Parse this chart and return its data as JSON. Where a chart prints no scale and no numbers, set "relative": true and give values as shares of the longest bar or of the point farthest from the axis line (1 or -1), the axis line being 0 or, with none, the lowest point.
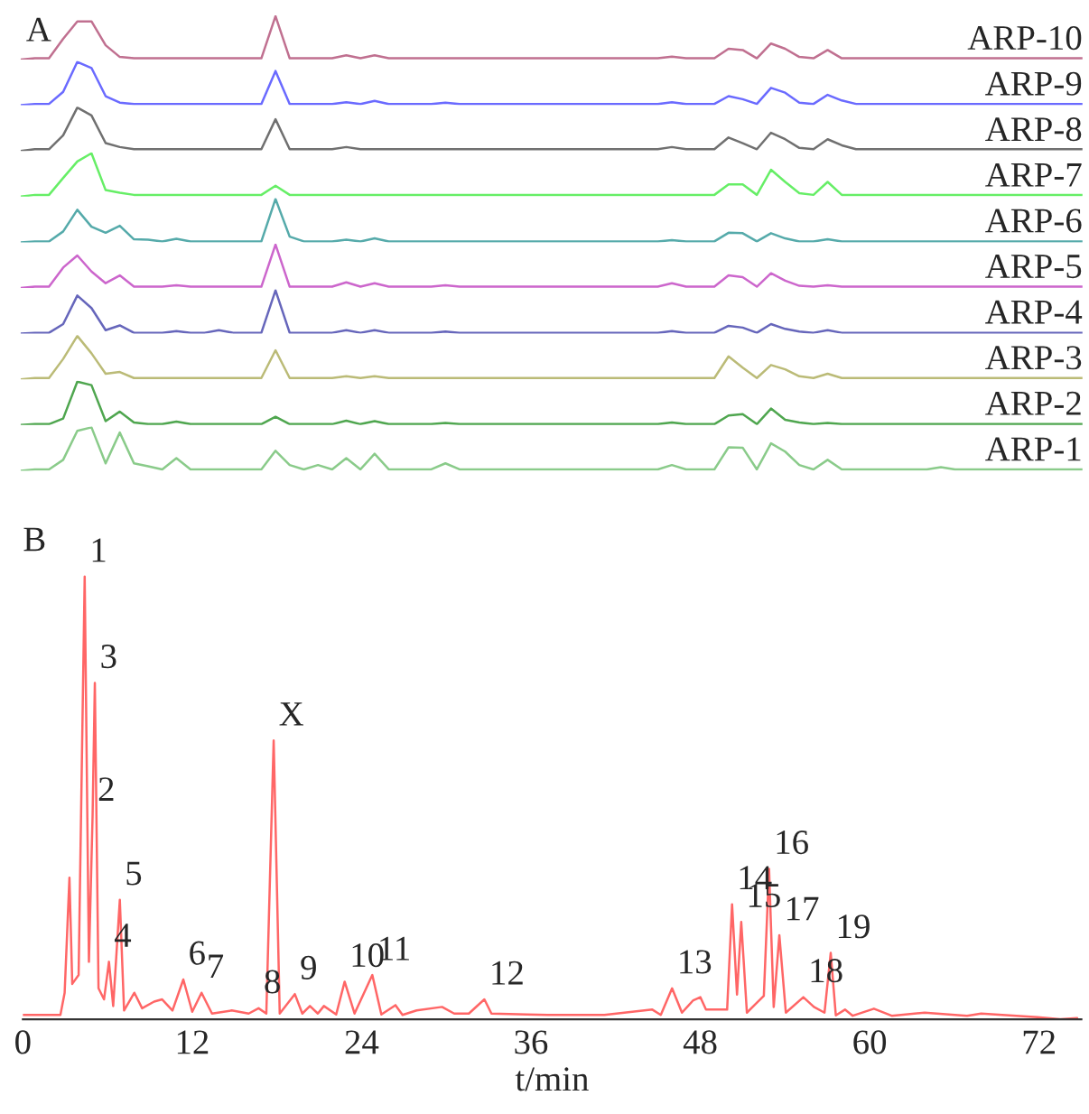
{
  "chart_data": [
    {
      "type": "line",
      "title": "A",
      "relative": true,
      "tick_labels": false,
      "categories": [
        null,
        null,
        null,
        null,
        null,
        null,
        null,
        null,
        null,
        null,
        null,
        null,
        null,
        null,
        null,
        null,
        null,
        null,
        null,
        null,
        null,
        null,
        null,
        null,
        null,
        null,
        null,
        null,
        null,
        null,
        null,
        null,
        null,
        null,
        null,
        null,
        null,
        null,
        null,
        null,
        null,
        null,
        null,
        null,
        null,
        null,
        null,
        null,
        null,
        null,
        null,
        null,
        null,
        null,
        null,
        null,
        null,
        null,
        null,
        null,
        null,
        null,
        null,
        null,
        null,
        null,
        null,
        null,
        null,
        null,
        null,
        null,
        null,
        null,
        null,
        null
      ],
      "series": [
        {
          "name": "ARP-10",
          "color": "#c07090",
          "values": [
            0,
            0.03,
            0.03,
            0.48,
            0.88,
            0.88,
            0.33,
            0.06,
            0.03,
            0.03,
            0.03,
            0.03,
            0.03,
            0.03,
            0.03,
            0.03,
            0.03,
            0.03,
            1,
            0.03,
            0.03,
            0.03,
            0.03,
            0.1,
            0.03,
            0.1,
            0.03,
            0.03,
            0.03,
            0.03,
            0.03,
            0.03,
            0.03,
            0.03,
            0.03,
            0.03,
            0.03,
            0.03,
            0.03,
            0.03,
            0.03,
            0.03,
            0.03,
            0.03,
            0.03,
            0.03,
            0.07,
            0.03,
            0.03,
            0.03,
            0.25,
            0.22,
            0.03,
            0.37,
            0.25,
            0.06,
            0.03,
            0.22,
            0.03,
            0.03,
            0.03,
            0.03,
            0.03,
            0.03,
            0.03,
            0.03,
            0.03,
            0.03,
            0.03,
            0.03,
            0.03,
            0.03,
            0.03,
            0.03,
            0.03,
            0.03
          ]
        }
      ]
    },
    {
      "type": "line",
      "relative": true,
      "tick_labels": false,
      "categories": [
        null,
        null,
        null,
        null,
        null,
        null,
        null,
        null,
        null,
        null,
        null,
        null,
        null,
        null,
        null,
        null,
        null,
        null,
        null,
        null,
        null,
        null,
        null,
        null,
        null,
        null,
        null,
        null,
        null,
        null,
        null,
        null,
        null,
        null,
        null,
        null,
        null,
        null,
        null,
        null,
        null,
        null,
        null,
        null,
        null,
        null,
        null,
        null,
        null,
        null,
        null,
        null,
        null,
        null,
        null,
        null,
        null,
        null,
        null,
        null,
        null,
        null,
        null,
        null,
        null,
        null,
        null,
        null,
        null,
        null,
        null,
        null,
        null,
        null,
        null,
        null
      ],
      "series": [
        {
          "name": "ARP-9",
          "color": "#6a6aff",
          "values": [
            0,
            0.03,
            0.03,
            0.31,
            1,
            0.86,
            0.21,
            0.06,
            0.03,
            0.03,
            0.03,
            0.03,
            0.03,
            0.03,
            0.03,
            0.03,
            0.03,
            0.03,
            0.79,
            0.03,
            0.03,
            0.03,
            0.03,
            0.07,
            0.03,
            0.1,
            0.03,
            0.03,
            0.03,
            0.03,
            0.06,
            0.03,
            0.03,
            0.03,
            0.03,
            0.03,
            0.03,
            0.03,
            0.03,
            0.03,
            0.03,
            0.03,
            0.03,
            0.03,
            0.03,
            0.03,
            0.07,
            0.03,
            0.03,
            0.03,
            0.21,
            0.14,
            0.03,
            0.4,
            0.29,
            0.06,
            0.03,
            0.24,
            0.11,
            0.03,
            0.03,
            0.03,
            0.03,
            0.03,
            0.03,
            0.03,
            0.03,
            0.03,
            0.03,
            0.03,
            0.03,
            0.03,
            0.03,
            0.03,
            0.03,
            0.03
          ]
        }
      ]
    },
    {
      "type": "line",
      "relative": true,
      "tick_labels": false,
      "categories": [
        null,
        null,
        null,
        null,
        null,
        null,
        null,
        null,
        null,
        null,
        null,
        null,
        null,
        null,
        null,
        null,
        null,
        null,
        null,
        null,
        null,
        null,
        null,
        null,
        null,
        null,
        null,
        null,
        null,
        null,
        null,
        null,
        null,
        null,
        null,
        null,
        null,
        null,
        null,
        null,
        null,
        null,
        null,
        null,
        null,
        null,
        null,
        null,
        null,
        null,
        null,
        null,
        null,
        null,
        null,
        null,
        null,
        null,
        null,
        null,
        null,
        null,
        null,
        null,
        null,
        null,
        null,
        null,
        null,
        null,
        null,
        null,
        null,
        null,
        null,
        null
      ],
      "series": [
        {
          "name": "ARP-8",
          "color": "#707070",
          "values": [
            0,
            0.04,
            0.04,
            0.36,
            1,
            0.82,
            0.18,
            0.09,
            0.04,
            0.04,
            0.04,
            0.04,
            0.04,
            0.04,
            0.04,
            0.04,
            0.04,
            0.04,
            0.73,
            0.04,
            0.04,
            0.04,
            0.04,
            0.09,
            0.04,
            0.04,
            0.04,
            0.04,
            0.04,
            0.04,
            0.04,
            0.04,
            0.04,
            0.04,
            0.04,
            0.04,
            0.04,
            0.04,
            0.04,
            0.04,
            0.04,
            0.04,
            0.04,
            0.04,
            0.04,
            0.04,
            0.09,
            0.04,
            0.04,
            0.04,
            0.31,
            0.18,
            0.04,
            0.42,
            0.27,
            0.07,
            0.04,
            0.27,
            0.13,
            0.04,
            0.04,
            0.04,
            0.04,
            0.04,
            0.04,
            0.04,
            0.04,
            0.04,
            0.04,
            0.04,
            0.04,
            0.04,
            0.04,
            0.04,
            0.04,
            0.04
          ]
        }
      ]
    },
    {
      "type": "line",
      "relative": true,
      "tick_labels": false,
      "categories": [
        null,
        null,
        null,
        null,
        null,
        null,
        null,
        null,
        null,
        null,
        null,
        null,
        null,
        null,
        null,
        null,
        null,
        null,
        null,
        null,
        null,
        null,
        null,
        null,
        null,
        null,
        null,
        null,
        null,
        null,
        null,
        null,
        null,
        null,
        null,
        null,
        null,
        null,
        null,
        null,
        null,
        null,
        null,
        null,
        null,
        null,
        null,
        null,
        null,
        null,
        null,
        null,
        null,
        null,
        null,
        null,
        null,
        null,
        null,
        null,
        null,
        null,
        null,
        null,
        null,
        null,
        null,
        null,
        null,
        null,
        null,
        null,
        null,
        null,
        null,
        null
      ],
      "series": [
        {
          "name": "ARP-7",
          "color": "#66ee66",
          "values": [
            0,
            0.04,
            0.04,
            0.43,
            0.81,
            1,
            0.15,
            0.09,
            0.04,
            0.04,
            0.04,
            0.04,
            0.04,
            0.04,
            0.04,
            0.04,
            0.04,
            0.04,
            0.25,
            0.04,
            0.04,
            0.04,
            0.04,
            0.04,
            0.04,
            0.04,
            0.04,
            0.04,
            0.04,
            0.04,
            0.04,
            0.04,
            0.04,
            0.04,
            0.04,
            0.04,
            0.04,
            0.04,
            0.04,
            0.04,
            0.04,
            0.04,
            0.04,
            0.04,
            0.04,
            0.04,
            0.04,
            0.04,
            0.04,
            0.04,
            0.28,
            0.28,
            0.04,
            0.62,
            0.34,
            0.08,
            0.04,
            0.34,
            0.04,
            0.04,
            0.04,
            0.04,
            0.04,
            0.04,
            0.04,
            0.04,
            0.04,
            0.04,
            0.04,
            0.04,
            0.04,
            0.04,
            0.04,
            0.04,
            0.04,
            0.04
          ]
        }
      ]
    },
    {
      "type": "line",
      "relative": true,
      "tick_labels": false,
      "categories": [
        null,
        null,
        null,
        null,
        null,
        null,
        null,
        null,
        null,
        null,
        null,
        null,
        null,
        null,
        null,
        null,
        null,
        null,
        null,
        null,
        null,
        null,
        null,
        null,
        null,
        null,
        null,
        null,
        null,
        null,
        null,
        null,
        null,
        null,
        null,
        null,
        null,
        null,
        null,
        null,
        null,
        null,
        null,
        null,
        null,
        null,
        null,
        null,
        null,
        null,
        null,
        null,
        null,
        null,
        null,
        null,
        null,
        null,
        null,
        null,
        null,
        null,
        null,
        null,
        null,
        null,
        null,
        null,
        null,
        null,
        null,
        null,
        null,
        null,
        null,
        null
      ],
      "series": [
        {
          "name": "ARP-6",
          "color": "#55aaaa",
          "values": [
            0,
            0.02,
            0.02,
            0.25,
            0.75,
            0.36,
            0.22,
            0.38,
            0.07,
            0.06,
            0.02,
            0.08,
            0.02,
            0.02,
            0.02,
            0.02,
            0.02,
            0.02,
            1,
            0.13,
            0.02,
            0.02,
            0.02,
            0.06,
            0.02,
            0.09,
            0.02,
            0.02,
            0.02,
            0.02,
            0.02,
            0.02,
            0.02,
            0.02,
            0.02,
            0.02,
            0.02,
            0.02,
            0.02,
            0.02,
            0.02,
            0.02,
            0.02,
            0.02,
            0.02,
            0.02,
            0.05,
            0.02,
            0.02,
            0.02,
            0.22,
            0.21,
            0.02,
            0.21,
            0.09,
            0.02,
            0.02,
            0.07,
            0.02,
            0.02,
            0.02,
            0.02,
            0.02,
            0.02,
            0.02,
            0.02,
            0.02,
            0.02,
            0.02,
            0.02,
            0.02,
            0.02,
            0.02,
            0.02,
            0.02,
            0.02
          ]
        }
      ]
    },
    {
      "type": "line",
      "relative": true,
      "tick_labels": false,
      "categories": [
        null,
        null,
        null,
        null,
        null,
        null,
        null,
        null,
        null,
        null,
        null,
        null,
        null,
        null,
        null,
        null,
        null,
        null,
        null,
        null,
        null,
        null,
        null,
        null,
        null,
        null,
        null,
        null,
        null,
        null,
        null,
        null,
        null,
        null,
        null,
        null,
        null,
        null,
        null,
        null,
        null,
        null,
        null,
        null,
        null,
        null,
        null,
        null,
        null,
        null,
        null,
        null,
        null,
        null,
        null,
        null,
        null,
        null,
        null,
        null,
        null,
        null,
        null,
        null,
        null,
        null,
        null,
        null,
        null,
        null,
        null,
        null,
        null,
        null,
        null,
        null
      ],
      "series": [
        {
          "name": "ARP-5",
          "color": "#cc66cc",
          "values": [
            0,
            0.03,
            0.03,
            0.47,
            0.75,
            0.38,
            0.11,
            0.29,
            0.03,
            0.03,
            0.03,
            0.06,
            0.03,
            0.03,
            0.03,
            0.03,
            0.03,
            0.03,
            1,
            0.03,
            0.03,
            0.03,
            0.03,
            0.13,
            0.03,
            0.11,
            0.03,
            0.03,
            0.03,
            0.03,
            0.06,
            0.03,
            0.03,
            0.03,
            0.03,
            0.03,
            0.03,
            0.03,
            0.03,
            0.03,
            0.03,
            0.03,
            0.03,
            0.03,
            0.03,
            0.03,
            0.11,
            0.03,
            0.03,
            0.03,
            0.29,
            0.25,
            0.03,
            0.34,
            0.17,
            0.05,
            0.03,
            0.06,
            0.03,
            0.03,
            0.03,
            0.03,
            0.03,
            0.03,
            0.03,
            0.03,
            0.03,
            0.03,
            0.03,
            0.03,
            0.03,
            0.03,
            0.03,
            0.03,
            0.03,
            0.03
          ]
        }
      ]
    },
    {
      "type": "line",
      "relative": true,
      "tick_labels": false,
      "categories": [
        null,
        null,
        null,
        null,
        null,
        null,
        null,
        null,
        null,
        null,
        null,
        null,
        null,
        null,
        null,
        null,
        null,
        null,
        null,
        null,
        null,
        null,
        null,
        null,
        null,
        null,
        null,
        null,
        null,
        null,
        null,
        null,
        null,
        null,
        null,
        null,
        null,
        null,
        null,
        null,
        null,
        null,
        null,
        null,
        null,
        null,
        null,
        null,
        null,
        null,
        null,
        null,
        null,
        null,
        null,
        null,
        null,
        null,
        null,
        null,
        null,
        null,
        null,
        null,
        null,
        null,
        null,
        null,
        null,
        null,
        null,
        null,
        null,
        null,
        null,
        null
      ],
      "series": [
        {
          "name": "ARP-4",
          "color": "#6666bb",
          "values": [
            0,
            0.02,
            0.02,
            0.22,
            0.88,
            0.59,
            0.08,
            0.19,
            0.02,
            0.02,
            0.02,
            0.06,
            0.02,
            0.02,
            0.08,
            0.02,
            0.02,
            0.02,
            1,
            0.02,
            0.02,
            0.02,
            0.02,
            0.08,
            0.02,
            0.08,
            0.02,
            0.02,
            0.02,
            0.02,
            0.05,
            0.02,
            0.02,
            0.02,
            0.02,
            0.02,
            0.02,
            0.02,
            0.02,
            0.02,
            0.02,
            0.02,
            0.02,
            0.02,
            0.02,
            0.02,
            0.06,
            0.02,
            0.02,
            0.02,
            0.18,
            0.14,
            0.02,
            0.22,
            0.11,
            0.05,
            0.02,
            0.08,
            0.02,
            0.02,
            0.02,
            0.02,
            0.02,
            0.02,
            0.02,
            0.02,
            0.02,
            0.02,
            0.02,
            0.02,
            0.02,
            0.02,
            0.02,
            0.02,
            0.02,
            0.02
          ]
        }
      ]
    },
    {
      "type": "line",
      "relative": true,
      "tick_labels": false,
      "categories": [
        null,
        null,
        null,
        null,
        null,
        null,
        null,
        null,
        null,
        null,
        null,
        null,
        null,
        null,
        null,
        null,
        null,
        null,
        null,
        null,
        null,
        null,
        null,
        null,
        null,
        null,
        null,
        null,
        null,
        null,
        null,
        null,
        null,
        null,
        null,
        null,
        null,
        null,
        null,
        null,
        null,
        null,
        null,
        null,
        null,
        null,
        null,
        null,
        null,
        null,
        null,
        null,
        null,
        null,
        null,
        null,
        null,
        null,
        null,
        null,
        null,
        null,
        null,
        null,
        null,
        null,
        null,
        null,
        null,
        null,
        null,
        null,
        null,
        null,
        null,
        null
      ],
      "series": [
        {
          "name": "ARP-3",
          "color": "#bbbb77",
          "values": [
            0,
            0.03,
            0.03,
            0.47,
            1,
            0.6,
            0.13,
            0.17,
            0.03,
            0.03,
            0.03,
            0.03,
            0.03,
            0.03,
            0.03,
            0.03,
            0.03,
            0.03,
            0.67,
            0.03,
            0.03,
            0.03,
            0.03,
            0.07,
            0.03,
            0.07,
            0.03,
            0.03,
            0.03,
            0.03,
            0.03,
            0.03,
            0.03,
            0.03,
            0.03,
            0.03,
            0.03,
            0.03,
            0.03,
            0.03,
            0.03,
            0.03,
            0.03,
            0.03,
            0.03,
            0.03,
            0.03,
            0.03,
            0.03,
            0.03,
            0.53,
            0.27,
            0.03,
            0.33,
            0.23,
            0.07,
            0.03,
            0.13,
            0.03,
            0.03,
            0.03,
            0.03,
            0.03,
            0.03,
            0.03,
            0.03,
            0.03,
            0.03,
            0.03,
            0.03,
            0.03,
            0.03,
            0.03,
            0.03,
            0.03,
            0.03
          ]
        }
      ]
    },
    {
      "type": "line",
      "relative": true,
      "tick_labels": false,
      "categories": [
        null,
        null,
        null,
        null,
        null,
        null,
        null,
        null,
        null,
        null,
        null,
        null,
        null,
        null,
        null,
        null,
        null,
        null,
        null,
        null,
        null,
        null,
        null,
        null,
        null,
        null,
        null,
        null,
        null,
        null,
        null,
        null,
        null,
        null,
        null,
        null,
        null,
        null,
        null,
        null,
        null,
        null,
        null,
        null,
        null,
        null,
        null,
        null,
        null,
        null,
        null,
        null,
        null,
        null,
        null,
        null,
        null,
        null,
        null,
        null,
        null,
        null,
        null,
        null,
        null,
        null,
        null,
        null,
        null,
        null,
        null,
        null,
        null,
        null,
        null,
        null
      ],
      "series": [
        {
          "name": "ARP-2",
          "color": "#4fa64f",
          "values": [
            0,
            0.02,
            0.02,
            0.15,
            1,
            0.92,
            0.09,
            0.31,
            0.06,
            0.02,
            0.02,
            0.08,
            0.02,
            0.02,
            0.02,
            0.02,
            0.02,
            0.02,
            0.19,
            0.02,
            0.02,
            0.02,
            0.02,
            0.1,
            0.02,
            0.09,
            0.02,
            0.02,
            0.02,
            0.02,
            0.05,
            0.02,
            0.02,
            0.02,
            0.02,
            0.02,
            0.02,
            0.02,
            0.02,
            0.02,
            0.02,
            0.02,
            0.02,
            0.02,
            0.02,
            0.02,
            0.06,
            0.02,
            0.02,
            0.02,
            0.22,
            0.25,
            0.02,
            0.38,
            0.12,
            0.06,
            0.02,
            0.05,
            0.02,
            0.02,
            0.02,
            0.02,
            0.02,
            0.02,
            0.02,
            0.02,
            0.02,
            0.02,
            0.02,
            0.02,
            0.02,
            0.02,
            0.02,
            0.02,
            0.02,
            0.02
          ]
        }
      ]
    },
    {
      "type": "line",
      "relative": true,
      "tick_labels": false,
      "categories": [
        null,
        null,
        null,
        null,
        null,
        null,
        null,
        null,
        null,
        null,
        null,
        null,
        null,
        null,
        null,
        null,
        null,
        null,
        null,
        null,
        null,
        null,
        null,
        null,
        null,
        null,
        null,
        null,
        null,
        null,
        null,
        null,
        null,
        null,
        null,
        null,
        null,
        null,
        null,
        null,
        null,
        null,
        null,
        null,
        null,
        null,
        null,
        null,
        null,
        null,
        null,
        null,
        null,
        null,
        null,
        null,
        null,
        null,
        null,
        null,
        null,
        null,
        null,
        null,
        null,
        null,
        null,
        null,
        null,
        null,
        null,
        null,
        null,
        null,
        null,
        null
      ],
      "series": [
        {
          "name": "ARP-1",
          "color": "#8acb8a",
          "values": [
            0,
            0.03,
            0.03,
            0.25,
            0.92,
            1,
            0.17,
            0.88,
            0.17,
            0.1,
            0.03,
            0.29,
            0.03,
            0.03,
            0.03,
            0.03,
            0.03,
            0.03,
            0.46,
            0.13,
            0.03,
            0.13,
            0.03,
            0.29,
            0.03,
            0.39,
            0.03,
            0.03,
            0.03,
            0.03,
            0.17,
            0.03,
            0.03,
            0.03,
            0.03,
            0.03,
            0.03,
            0.03,
            0.03,
            0.03,
            0.03,
            0.03,
            0.03,
            0.03,
            0.03,
            0.03,
            0.13,
            0.03,
            0.03,
            0.03,
            0.54,
            0.53,
            0.03,
            0.63,
            0.44,
            0.13,
            0.03,
            0.25,
            0.03,
            0.03,
            0.03,
            0.03,
            0.03,
            0.03,
            0.03,
            0.08,
            0.03,
            0.03,
            0.03,
            0.03,
            0.03,
            0.03,
            0.03,
            0.03,
            0.03,
            0.03
          ]
        }
      ]
    },
    {
      "type": "line",
      "title": "B",
      "relative": true,
      "xlabel": "t/min",
      "xlim": [
        0,
        75
      ],
      "xticks": [
        0,
        12,
        24,
        36,
        48,
        60,
        72
      ],
      "x": [
        0,
        2.66,
        2.96,
        3.3,
        3.5,
        3.95,
        4.38,
        4.68,
        4.94,
        5.1,
        5.36,
        5.75,
        6.1,
        6.4,
        6.87,
        7.17,
        7.9,
        8.45,
        9.3,
        9.87,
        10.6,
        11.37,
        12.0,
        12.66,
        13.4,
        14.8,
        16.0,
        16.7,
        17.25,
        17.77,
        18.2,
        19.27,
        19.8,
        20.34,
        20.9,
        21.33,
        22.2,
        22.8,
        23.5,
        24.76,
        25.4,
        26.4,
        26.9,
        27.9,
        29.7,
        30.56,
        31.6,
        32.7,
        33.2,
        35.7,
        37.2,
        41.2,
        44.6,
        45.2,
        46.0,
        46.7,
        47.5,
        48.0,
        48.4,
        49.9,
        50.25,
        50.6,
        50.9,
        51.3,
        51.9,
        52.5,
        52.87,
        53.2,
        53.6,
        54.06,
        55.3,
        56.05,
        56.8,
        57.24,
        57.6,
        58.25,
        58.8,
        60.3,
        61.56,
        63.9,
        66.9,
        67.9,
        71.9,
        73.5,
        74.7
      ],
      "series": [
        {
          "color": "#ff6666",
          "values": [
            0.01,
            0.01,
            0.06,
            0.32,
            0.08,
            0.1,
            1,
            0.13,
            0.46,
            0.76,
            0.07,
            0.045,
            0.13,
            0.03,
            0.27,
            0.02,
            0.06,
            0.025,
            0.04,
            0.045,
            0.02,
            0.09,
            0.017,
            0.06,
            0.013,
            0.02,
            0.013,
            0.025,
            0.013,
            0.63,
            0.013,
            0.057,
            0.013,
            0.03,
            0.013,
            0.03,
            0.011,
            0.085,
            0.013,
            0.1,
            0.011,
            0.032,
            0.01,
            0.02,
            0.028,
            0.013,
            0.013,
            0.045,
            0.013,
            0.011,
            0.01,
            0.01,
            0.022,
            0.01,
            0.07,
            0.015,
            0.043,
            0.05,
            0.022,
            0.022,
            0.26,
            0.056,
            0.22,
            0.015,
            0.034,
            0.053,
            0.34,
            0.028,
            0.19,
            0.015,
            0.05,
            0.028,
            0.015,
            0.15,
            0.009,
            0.022,
            0.008,
            0.024,
            0.008,
            0.015,
            0.008,
            0.013,
            0.005,
            0.0,
            0.003
          ]
        }
      ],
      "annotations": [
        {
          "text": "1",
          "x": 4.38,
          "y": 1
        },
        {
          "text": "2",
          "x": 4.94,
          "y": 0.46
        },
        {
          "text": "3",
          "x": 5.1,
          "y": 0.76
        },
        {
          "text": "4",
          "x": 6.1,
          "y": 0.13
        },
        {
          "text": "5",
          "x": 6.87,
          "y": 0.27
        },
        {
          "text": "6",
          "x": 11.37,
          "y": 0.09
        },
        {
          "text": "7",
          "x": 12.66,
          "y": 0.06
        },
        {
          "text": "8",
          "x": 16.7,
          "y": 0.025
        },
        {
          "text": "X",
          "x": 17.77,
          "y": 0.63
        },
        {
          "text": "9",
          "x": 19.27,
          "y": 0.057
        },
        {
          "text": "10",
          "x": 22.8,
          "y": 0.085
        },
        {
          "text": "11",
          "x": 24.76,
          "y": 0.1
        },
        {
          "text": "12",
          "x": 32.7,
          "y": 0.045
        },
        {
          "text": "13",
          "x": 46.0,
          "y": 0.07
        },
        {
          "text": "14",
          "x": 50.25,
          "y": 0.26
        },
        {
          "text": "15",
          "x": 50.9,
          "y": 0.22
        },
        {
          "text": "16",
          "x": 52.87,
          "y": 0.34
        },
        {
          "text": "17",
          "x": 53.6,
          "y": 0.19
        },
        {
          "text": "18",
          "x": 55.3,
          "y": 0.05
        },
        {
          "text": "19",
          "x": 57.24,
          "y": 0.15
        }
      ]
    }
  ]
}
